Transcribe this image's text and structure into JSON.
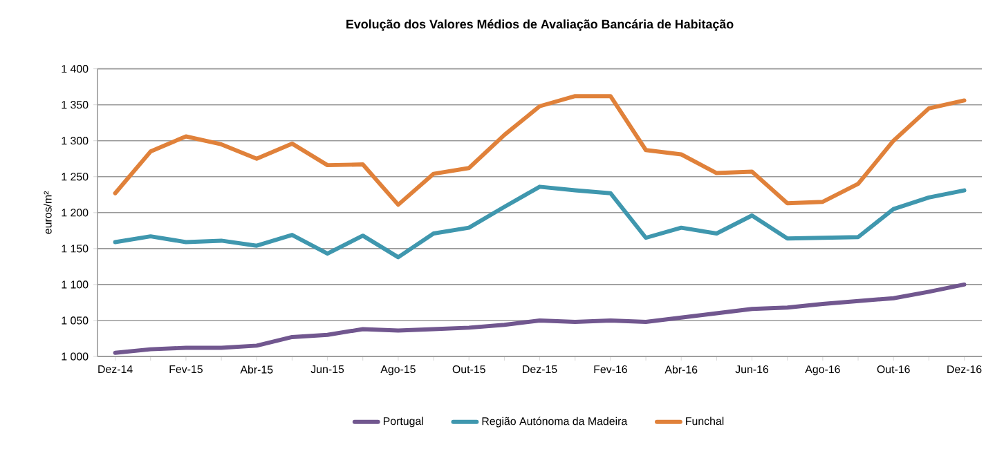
{
  "chart_data": {
    "type": "line",
    "title": "Evolução dos Valores Médios de Avaliação Bancária de Habitação",
    "ylabel": "euros/m²",
    "categories": [
      "Dez-14",
      null,
      "Fev-15",
      null,
      "Abr-15",
      null,
      "Jun-15",
      null,
      "Ago-15",
      null,
      "Out-15",
      null,
      "Dez-15",
      null,
      "Fev-16",
      null,
      "Abr-16",
      null,
      "Jun-16",
      null,
      "Ago-16",
      null,
      "Out-16",
      null,
      "Dez-16"
    ],
    "series": [
      {
        "name": "Portugal",
        "color": "#71578f",
        "values": [
          1005,
          1010,
          1012,
          1012,
          1015,
          1027,
          1030,
          1038,
          1036,
          1038,
          1040,
          1044,
          1050,
          1048,
          1050,
          1048,
          1054,
          1060,
          1066,
          1068,
          1073,
          1077,
          1081,
          1090,
          1100
        ]
      },
      {
        "name": "Região Autónoma da Madeira",
        "color": "#3f97ae",
        "values": [
          1159,
          1167,
          1159,
          1161,
          1154,
          1169,
          1143,
          1168,
          1138,
          1171,
          1179,
          1208,
          1236,
          1231,
          1227,
          1165,
          1179,
          1171,
          1196,
          1164,
          1165,
          1166,
          1205,
          1221,
          1231
        ]
      },
      {
        "name": "Funchal",
        "color": "#e0813a",
        "values": [
          1227,
          1285,
          1306,
          1295,
          1275,
          1296,
          1266,
          1267,
          1211,
          1254,
          1262,
          1308,
          1348,
          1362,
          1362,
          1287,
          1281,
          1255,
          1257,
          1213,
          1215,
          1240,
          1300,
          1345,
          1356
        ]
      }
    ],
    "ylim": [
      1000,
      1400
    ],
    "yticks": [
      {
        "value": 1000,
        "label": "1 000"
      },
      {
        "value": 1050,
        "label": "1 050"
      },
      {
        "value": 1100,
        "label": "1 100"
      },
      {
        "value": 1150,
        "label": "1 150"
      },
      {
        "value": 1200,
        "label": "1 200"
      },
      {
        "value": 1250,
        "label": "1 250"
      },
      {
        "value": 1300,
        "label": "1 300"
      },
      {
        "value": 1350,
        "label": "1 350"
      },
      {
        "value": 1400,
        "label": "1 400"
      }
    ],
    "grid": "y",
    "legend": "bottom",
    "marker": "none",
    "line_style": "solid"
  }
}
